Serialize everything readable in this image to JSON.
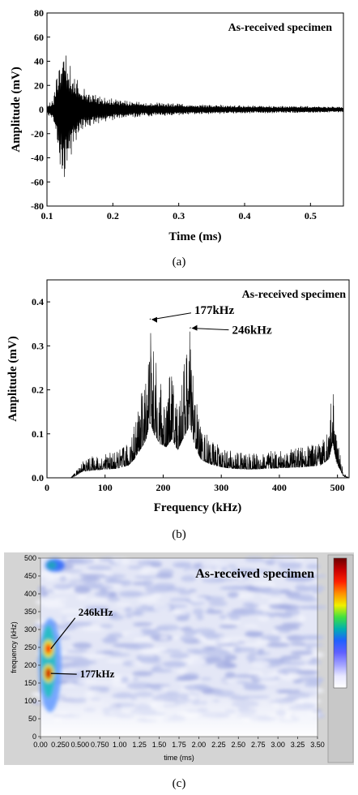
{
  "chart_data": [
    {
      "id": "a",
      "type": "line",
      "annotation": "As-received specimen",
      "xlabel": "Time (ms)",
      "ylabel": "Amplitude (mV)",
      "xlim": [
        0.1,
        0.55
      ],
      "ylim": [
        -80,
        80
      ],
      "xticks": [
        "0.1",
        "0.2",
        "0.3",
        "0.4",
        "0.5"
      ],
      "yticks": [
        "-80",
        "-60",
        "-40",
        "-20",
        "0",
        "20",
        "40",
        "60",
        "80"
      ],
      "envelope": {
        "x": [
          0.1,
          0.11,
          0.115,
          0.12,
          0.125,
          0.13,
          0.135,
          0.14,
          0.15,
          0.16,
          0.18,
          0.2,
          0.23,
          0.26,
          0.3,
          0.35,
          0.4,
          0.45,
          0.5,
          0.55
        ],
        "upper": [
          4,
          8,
          30,
          45,
          60,
          48,
          38,
          30,
          22,
          15,
          12,
          9,
          7,
          6,
          5,
          4,
          3.5,
          3,
          3,
          2.5
        ],
        "lower": [
          -4,
          -10,
          -32,
          -55,
          -65,
          -52,
          -42,
          -32,
          -22,
          -16,
          -12,
          -9,
          -7,
          -6,
          -5,
          -4,
          -3.5,
          -3,
          -3,
          -2.5
        ]
      },
      "caption": "(a)"
    },
    {
      "id": "b",
      "type": "line",
      "annotation": "As-received specimen",
      "xlabel": "Frequency (kHz)",
      "ylabel": "Amplitude (mV)",
      "xlim": [
        0,
        520
      ],
      "ylim": [
        0,
        0.45
      ],
      "xticks": [
        "0",
        "100",
        "200",
        "300",
        "400",
        "500"
      ],
      "yticks": [
        "0.0",
        "0.1",
        "0.2",
        "0.3",
        "0.4"
      ],
      "peaks": [
        {
          "label": "177kHz",
          "x": 177,
          "y": 0.36
        },
        {
          "label": "246kHz",
          "x": 246,
          "y": 0.34
        }
      ],
      "envelope": {
        "x": [
          0,
          40,
          50,
          60,
          80,
          100,
          120,
          140,
          150,
          160,
          170,
          177,
          185,
          195,
          205,
          215,
          225,
          235,
          246,
          255,
          265,
          280,
          300,
          320,
          350,
          380,
          410,
          440,
          470,
          485,
          492,
          498,
          505,
          510,
          520
        ],
        "y": [
          0,
          0,
          0.015,
          0.04,
          0.05,
          0.055,
          0.06,
          0.08,
          0.12,
          0.18,
          0.24,
          0.36,
          0.28,
          0.22,
          0.2,
          0.25,
          0.18,
          0.26,
          0.34,
          0.2,
          0.12,
          0.09,
          0.07,
          0.06,
          0.055,
          0.06,
          0.065,
          0.07,
          0.08,
          0.12,
          0.23,
          0.1,
          0.05,
          0.01,
          0
        ]
      },
      "caption": "(b)"
    },
    {
      "id": "c",
      "type": "heatmap",
      "annotation": "As-received specimen",
      "xlabel": "time (ms)",
      "ylabel": "frequency (kHz)",
      "xlim": [
        0,
        3.5
      ],
      "ylim": [
        0,
        500
      ],
      "xticks": [
        "0.00",
        "0.250",
        "0.500",
        "0.750",
        "1.00",
        "1.25",
        "1.50",
        "1.75",
        "2.00",
        "2.25",
        "2.50",
        "2.75",
        "3.00",
        "3.25",
        "3.50"
      ],
      "yticks": [
        "0",
        "50",
        "100",
        "150",
        "200",
        "250",
        "300",
        "350",
        "400",
        "450",
        "500"
      ],
      "peaks": [
        {
          "label": "246kHz",
          "time": 0.1,
          "freq": 246
        },
        {
          "label": "177kHz",
          "time": 0.1,
          "freq": 177
        }
      ],
      "colorscale": [
        "#6a0000",
        "#c80000",
        "#ff2000",
        "#ff9000",
        "#f0f000",
        "#40e040",
        "#00b0b0",
        "#2060ff",
        "#6060ff",
        "#a0a0ff",
        "#e8e8ff",
        "#ffffff"
      ],
      "caption": "(c)"
    }
  ]
}
